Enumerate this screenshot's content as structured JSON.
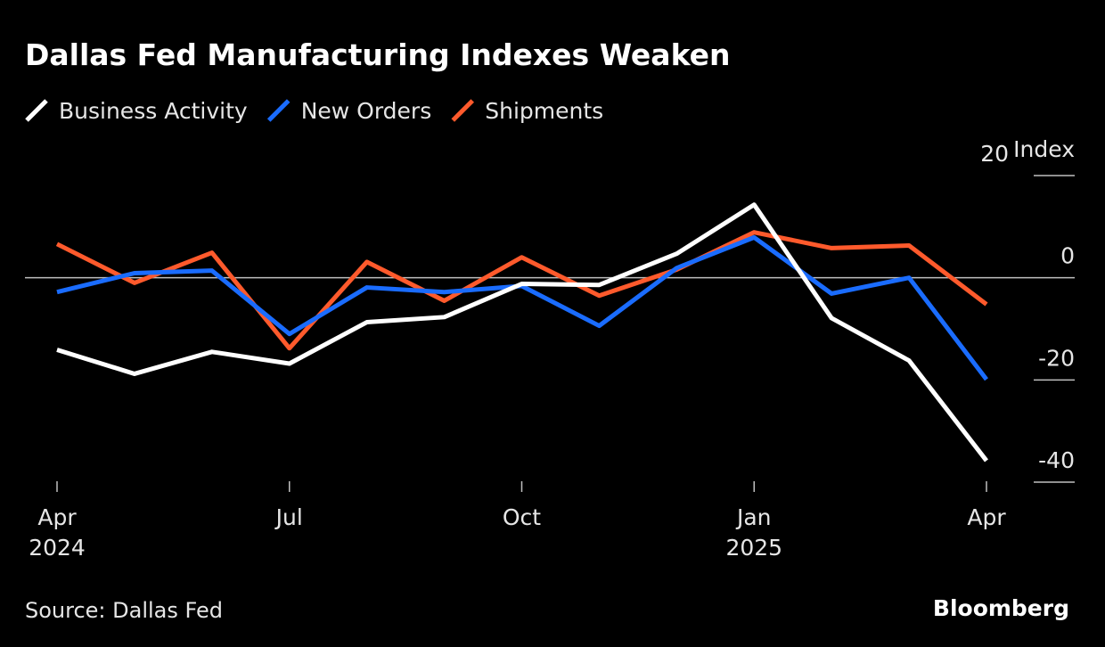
{
  "chart_data": {
    "type": "line",
    "title": "Dallas Fed Manufacturing Indexes Weaken",
    "y_axis_label": "Index",
    "source": "Source: Dallas Fed",
    "brand": "Bloomberg",
    "categories": [
      "Apr 2024",
      null,
      null,
      "Jul",
      null,
      null,
      "Oct",
      null,
      null,
      "Jan 2025",
      null,
      null,
      "Apr"
    ],
    "series": [
      {
        "name": "Business Activity",
        "color": "#ffffff",
        "values": [
          -14.1,
          -18.8,
          -14.5,
          -16.8,
          -8.7,
          -7.7,
          -1.2,
          -1.4,
          4.7,
          14.3,
          -7.9,
          -16.2,
          -35.8
        ]
      },
      {
        "name": "New Orders",
        "color": "#1a6cff",
        "values": [
          -2.8,
          0.9,
          1.4,
          -11,
          -1.9,
          -2.8,
          -1.6,
          -9.4,
          1.9,
          7.9,
          -3.1,
          0,
          -19.9
        ]
      },
      {
        "name": "Shipments",
        "color": "#ff5a2c",
        "values": [
          6.6,
          -1,
          4.9,
          -13.8,
          3.1,
          -4.5,
          4,
          -3.5,
          1.6,
          8.9,
          5.8,
          6.3,
          -5.2
        ]
      }
    ],
    "ylim": [
      -40,
      20
    ],
    "yticks": [
      -40,
      -20,
      0,
      20
    ],
    "legend": "top-left"
  }
}
